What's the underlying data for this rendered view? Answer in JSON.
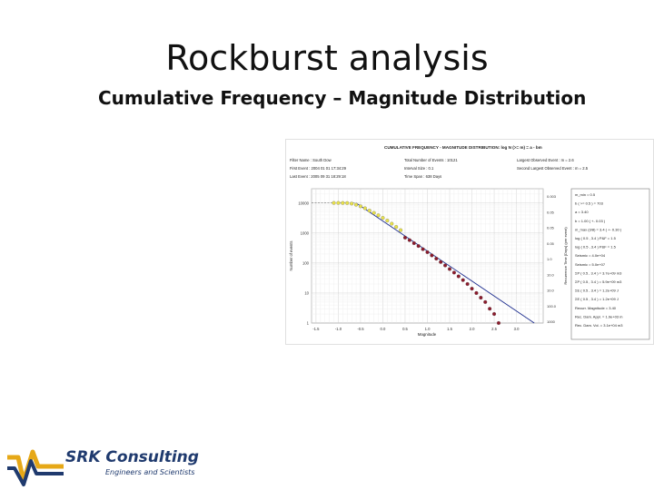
{
  "slide": {
    "title": "Rockburst analysis",
    "subtitle": "Cumulative Frequency – Magnitude Distribution"
  },
  "chart_header": {
    "title": "CUMULATIVE FREQUENCY - MAGNITUDE DISTRIBUTION: log N (>= m) = a - bm",
    "filter_name": "Filter Name : South Dow",
    "first_event": "First Event : 2004 01 01 17:34:29",
    "last_event": "Last Event : 2005 09 31 18:29:18",
    "total_events": "Total Number of Events : 10121",
    "interval_size": "Interval Size : 0.1",
    "time_span": "Time Span : 638 Days",
    "largest_event": "Largest Observed Event : m = 2.6",
    "second_largest": "Second Largest Observed Event : m = 2.5"
  },
  "stats_panel": [
    "m_min = 0.5",
    "b ( >= 0.5 ) = 703",
    "a = 3.40",
    "b = 1.00 ( +- 0.03 )",
    "m_max (3/8) = 3.4 ( +- 0.30 )",
    "log ( 0.5 , 3.4 ) P&F = 1.5",
    "log ( 0.5 , 3.4 ) P&F = 1.5",
    "Seismic = 4.0e+04",
    "Seismic = 5.0e+07",
    "ΣP ( 0.5 , 3.4 ) = 3.7e+09 m3",
    "ΣP ( 0.5 , 3.4 ) = 5.9e+09 m3",
    "ΣE ( 0.5 , 3.4 ) = 1.2e+09 J",
    "ΣE ( 0.5 , 3.4 ) = 1.2e+09 J",
    "Recurr. Magnitude = 3.40",
    "Rec. Dam. Appl. = 1.9e+03 m",
    "Rec. Dam. Vol. = 3.1e+04 m3"
  ],
  "chart_data": {
    "type": "scatter",
    "title": "CUMULATIVE FREQUENCY - MAGNITUDE DISTRIBUTION: log N (>= m) = a - bm",
    "xlabel": "Magnitude",
    "ylabel": "Number of events",
    "y2label": "Recurrence Time [Days] (per event)",
    "y_scale": "log",
    "xlim": [
      -1.6,
      3.6
    ],
    "ylim": [
      1,
      30000
    ],
    "x_ticks": [
      "-1.5",
      "-1.0",
      "-0.5",
      "0.0",
      "0.5",
      "1.0",
      "1.5",
      "2.0",
      "2.5",
      "3.0"
    ],
    "y_ticks": [
      {
        "value": 10000,
        "label": "10000"
      },
      {
        "value": 1000,
        "label": "1000"
      },
      {
        "value": 100,
        "label": "100"
      },
      {
        "value": 10,
        "label": "10"
      },
      {
        "value": 1,
        "label": "1"
      }
    ],
    "y2_ticks": [
      "0.003",
      "0.05",
      "0.05",
      "0.05",
      "1.0",
      "10.0",
      "10.0",
      "100.0",
      "1000"
    ],
    "grid": true,
    "series": [
      {
        "color": "#e8e14c",
        "x": [
          -1.1,
          -1.0,
          -0.9,
          -0.8,
          -0.7,
          -0.6,
          -0.5,
          -0.4,
          -0.3,
          -0.2,
          -0.1,
          0.0,
          0.1,
          0.2,
          0.3,
          0.4
        ],
        "y": [
          10100,
          10100,
          10050,
          10000,
          9600,
          8800,
          7800,
          6700,
          5600,
          4700,
          3900,
          3200,
          2600,
          2050,
          1600,
          1250
        ]
      },
      {
        "color": "#8b1a2b",
        "x": [
          0.5,
          0.6,
          0.7,
          0.8,
          0.9,
          1.0,
          1.1,
          1.2,
          1.3,
          1.4,
          1.5,
          1.6,
          1.7,
          1.8,
          1.9,
          2.0,
          2.1,
          2.2,
          2.3,
          2.4,
          2.5,
          2.6
        ],
        "y": [
          703,
          580,
          460,
          370,
          290,
          230,
          180,
          140,
          108,
          83,
          63,
          48,
          36,
          27,
          20,
          14,
          10,
          7,
          5,
          3,
          2,
          1
        ]
      }
    ],
    "fit_line": {
      "color": "#1f2f8f",
      "a": 3.4,
      "b": 1.0,
      "x_from": -0.6,
      "x_to": 3.4
    },
    "reference_line": {
      "y": 10100,
      "x_from": -1.6,
      "x_to": -0.6
    }
  },
  "logo": {
    "name": "SRK Consulting",
    "tagline": "Engineers and Scientists",
    "colors": {
      "navy": "#1f3a6e",
      "gold": "#e6a817"
    }
  }
}
